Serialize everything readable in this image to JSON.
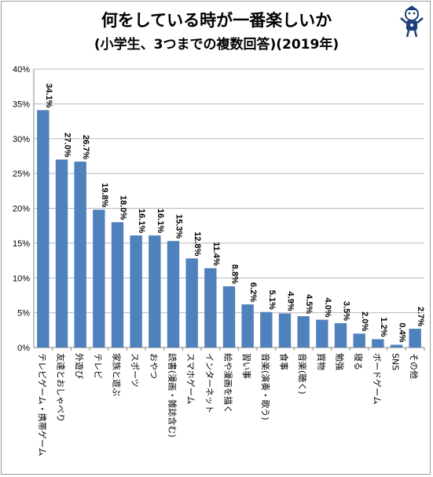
{
  "chart_data": {
    "type": "bar",
    "title": "何をしている時が一番楽しいか",
    "subtitle": "(小学生、3つまでの複数回答)(2019年)",
    "xlabel": "",
    "ylabel": "",
    "ylim": [
      0,
      40
    ],
    "yticks": [
      "0%",
      "5%",
      "10%",
      "15%",
      "20%",
      "25%",
      "30%",
      "35%",
      "40%"
    ],
    "grid": true,
    "legend": "none",
    "bar_color": "#4f81bd",
    "categories": [
      "テレビゲーム・携帯ゲーム",
      "友達とおしゃべり",
      "外遊び",
      "テレビ",
      "家族と遊ぶ",
      "スポーツ",
      "おやつ",
      "読書(漫画・雑誌含む)",
      "スマホゲーム",
      "インターネット",
      "絵や漫画を描く",
      "習い事",
      "音楽(演奏・歌う)",
      "食事",
      "音楽(聴く)",
      "買物",
      "勉強",
      "寝る",
      "ボードゲーム",
      "SNS",
      "その他"
    ],
    "values": [
      34.1,
      27.0,
      26.7,
      19.8,
      18.0,
      16.1,
      16.1,
      15.3,
      12.8,
      11.4,
      8.8,
      6.2,
      5.1,
      4.9,
      4.5,
      4.0,
      3.5,
      2.0,
      1.2,
      0.4,
      2.7
    ],
    "data_labels": [
      "34.1%",
      "27.0%",
      "26.7%",
      "19.8%",
      "18.0%",
      "16.1%",
      "16.1%",
      "15.3%",
      "12.8%",
      "11.4%",
      "8.8%",
      "6.2%",
      "5.1%",
      "4.9%",
      "4.5%",
      "4.0%",
      "3.5%",
      "2.0%",
      "1.2%",
      "0.4%",
      "2.7%"
    ]
  }
}
